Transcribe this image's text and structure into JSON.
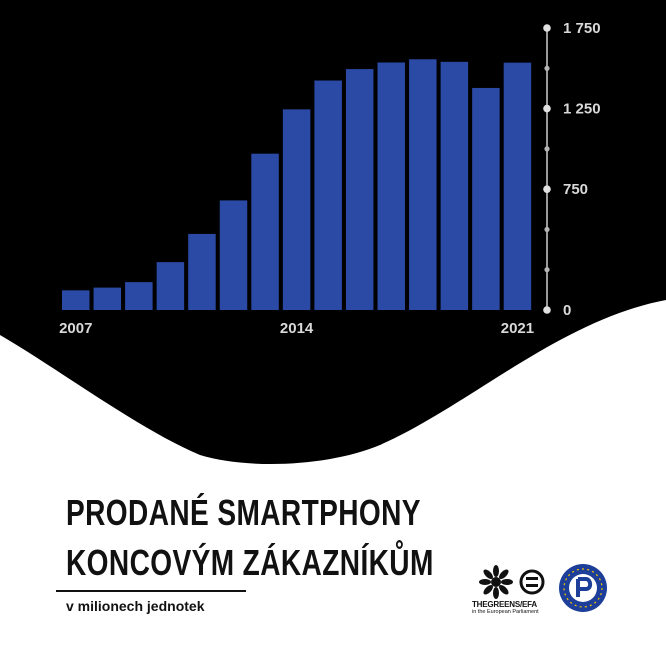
{
  "chart_data": {
    "type": "bar",
    "categories": [
      "2007",
      "2008",
      "2009",
      "2010",
      "2011",
      "2012",
      "2013",
      "2014",
      "2015",
      "2016",
      "2017",
      "2018",
      "2019",
      "2020",
      "2021"
    ],
    "values": [
      122,
      139,
      173,
      297,
      472,
      680,
      970,
      1245,
      1424,
      1495,
      1536,
      1556,
      1540,
      1378,
      1535
    ],
    "x_tick_labels": [
      "2007",
      "2014",
      "2021"
    ],
    "y_tick_labels": [
      "1 750",
      "1 250",
      "750",
      "0"
    ],
    "y_ticks": [
      1750,
      1250,
      750,
      0
    ],
    "y_minor_ticks": [
      1500,
      1000,
      500,
      250
    ],
    "ylim": [
      0,
      1750
    ],
    "grid": false,
    "bar_color": "#2a4aa6",
    "background_color": "#000000"
  },
  "title_line1": "PRODANÉ SMARTPHONY",
  "title_line2": "KONCOVÝM ZÁKAZNÍKŮM",
  "subtitle": "v milionech jednotek",
  "logos": {
    "greens_name": "THEGREENS/EFA",
    "greens_sub": "in the European Parliament",
    "pirate_icon": "pirate-party-logo",
    "greens_icon": "greens-efa-logo"
  }
}
